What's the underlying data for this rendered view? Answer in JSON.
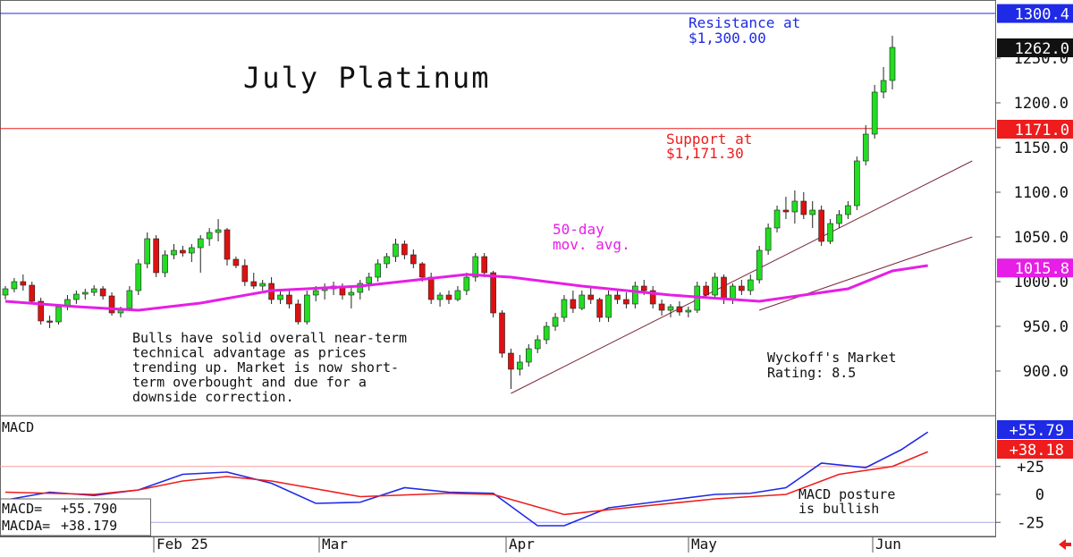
{
  "chart_data": [
    {
      "type": "candlestick",
      "title": "July Platinum",
      "y_axis": {
        "min": 875,
        "max": 1310,
        "ticks": [
          900,
          950,
          1000,
          1050,
          1100,
          1150,
          1200,
          1250
        ]
      },
      "x_axis": {
        "labels": [
          "Feb 25",
          "Mar",
          "Apr",
          "May",
          "Jun"
        ]
      },
      "price_tags": [
        {
          "value": "1300.4",
          "level": 1300.4,
          "color": "#1e2ae6",
          "text_color": "#ffffff"
        },
        {
          "value": "1262.0",
          "level": 1262.0,
          "color": "#111111",
          "text_color": "#ffffff"
        },
        {
          "value": "1171.0",
          "level": 1171.0,
          "color": "#ee1c1c",
          "text_color": "#ffffff"
        },
        {
          "value": "1015.8",
          "level": 1015.8,
          "color": "#e61ee6",
          "text_color": "#ffffff"
        }
      ],
      "resistance": {
        "level": 1300.0,
        "label_line1": "Resistance at",
        "label_line2": "$1,300.00",
        "color": "#1e2ae6"
      },
      "support": {
        "level": 1171.3,
        "label_line1": "Support at",
        "label_line2": "$1,171.30",
        "color": "#ee1c1c"
      },
      "moving_average": {
        "label_line1": "50-day",
        "label_line2": "mov. avg.",
        "color": "#e61ee6"
      },
      "annotations": {
        "comment": [
          "Bulls have solid overall near-term",
          "technical advantage as prices",
          "trending up. Market is now short-",
          "term overbought and due for a",
          "downside correction."
        ],
        "rating": [
          "Wyckoff's Market",
          "Rating: 8.5"
        ]
      },
      "candles": [
        [
          985,
          995,
          980,
          992
        ],
        [
          992,
          1004,
          988,
          1000
        ],
        [
          1000,
          1008,
          990,
          996
        ],
        [
          996,
          1000,
          975,
          978
        ],
        [
          978,
          982,
          952,
          956
        ],
        [
          956,
          962,
          948,
          955
        ],
        [
          955,
          975,
          952,
          972
        ],
        [
          972,
          985,
          968,
          980
        ],
        [
          980,
          990,
          975,
          986
        ],
        [
          986,
          992,
          980,
          988
        ],
        [
          988,
          996,
          984,
          992
        ],
        [
          992,
          995,
          980,
          984
        ],
        [
          984,
          988,
          962,
          965
        ],
        [
          965,
          972,
          960,
          970
        ],
        [
          970,
          995,
          968,
          990
        ],
        [
          990,
          1025,
          985,
          1020
        ],
        [
          1020,
          1055,
          1015,
          1048
        ],
        [
          1048,
          1052,
          1005,
          1010
        ],
        [
          1010,
          1035,
          1005,
          1030
        ],
        [
          1030,
          1042,
          1025,
          1035
        ],
        [
          1035,
          1040,
          1028,
          1032
        ],
        [
          1032,
          1042,
          1022,
          1038
        ],
        [
          1038,
          1052,
          1010,
          1048
        ],
        [
          1048,
          1060,
          1040,
          1055
        ],
        [
          1055,
          1070,
          1045,
          1058
        ],
        [
          1058,
          1060,
          1018,
          1025
        ],
        [
          1025,
          1028,
          1015,
          1018
        ],
        [
          1018,
          1025,
          995,
          1000
        ],
        [
          1000,
          1010,
          992,
          995
        ],
        [
          995,
          1002,
          990,
          998
        ],
        [
          998,
          1005,
          975,
          980
        ],
        [
          980,
          990,
          975,
          985
        ],
        [
          985,
          992,
          970,
          975
        ],
        [
          975,
          980,
          952,
          955
        ],
        [
          955,
          990,
          952,
          985
        ],
        [
          985,
          995,
          978,
          990
        ],
        [
          990,
          998,
          980,
          992
        ],
        [
          992,
          1000,
          985,
          995
        ],
        [
          995,
          998,
          980,
          985
        ],
        [
          985,
          995,
          970,
          988
        ],
        [
          988,
          1002,
          980,
          998
        ],
        [
          998,
          1010,
          990,
          1005
        ],
        [
          1005,
          1025,
          1000,
          1020
        ],
        [
          1020,
          1032,
          1015,
          1028
        ],
        [
          1028,
          1048,
          1022,
          1042
        ],
        [
          1042,
          1046,
          1025,
          1030
        ],
        [
          1030,
          1036,
          1015,
          1020
        ],
        [
          1020,
          1022,
          1000,
          1005
        ],
        [
          1005,
          1010,
          975,
          980
        ],
        [
          980,
          988,
          972,
          985
        ],
        [
          985,
          990,
          975,
          980
        ],
        [
          980,
          995,
          978,
          990
        ],
        [
          990,
          1010,
          985,
          1005
        ],
        [
          1005,
          1032,
          1000,
          1028
        ],
        [
          1028,
          1032,
          1005,
          1010
        ],
        [
          1010,
          1012,
          960,
          965
        ],
        [
          965,
          968,
          915,
          920
        ],
        [
          920,
          925,
          880,
          902
        ],
        [
          902,
          918,
          895,
          910
        ],
        [
          910,
          930,
          905,
          925
        ],
        [
          925,
          940,
          920,
          935
        ],
        [
          935,
          955,
          930,
          950
        ],
        [
          950,
          965,
          945,
          960
        ],
        [
          960,
          985,
          955,
          980
        ],
        [
          980,
          990,
          965,
          970
        ],
        [
          970,
          990,
          968,
          985
        ],
        [
          985,
          995,
          975,
          980
        ],
        [
          980,
          982,
          955,
          960
        ],
        [
          960,
          990,
          955,
          985
        ],
        [
          985,
          992,
          975,
          980
        ],
        [
          980,
          988,
          970,
          975
        ],
        [
          975,
          1000,
          970,
          995
        ],
        [
          995,
          1002,
          985,
          990
        ],
        [
          990,
          995,
          970,
          975
        ],
        [
          975,
          980,
          962,
          968
        ],
        [
          968,
          975,
          960,
          972
        ],
        [
          972,
          978,
          962,
          966
        ],
        [
          966,
          972,
          960,
          968
        ],
        [
          968,
          1000,
          965,
          995
        ],
        [
          995,
          1000,
          982,
          985
        ],
        [
          985,
          1010,
          980,
          1005
        ],
        [
          1005,
          1008,
          975,
          980
        ],
        [
          980,
          998,
          975,
          995
        ],
        [
          995,
          1002,
          985,
          990
        ],
        [
          990,
          1008,
          985,
          1002
        ],
        [
          1002,
          1040,
          998,
          1035
        ],
        [
          1035,
          1065,
          1030,
          1060
        ],
        [
          1060,
          1085,
          1055,
          1080
        ],
        [
          1080,
          1095,
          1070,
          1078
        ],
        [
          1078,
          1102,
          1065,
          1090
        ],
        [
          1090,
          1100,
          1070,
          1075
        ],
        [
          1075,
          1090,
          1060,
          1080
        ],
        [
          1080,
          1085,
          1040,
          1045
        ],
        [
          1045,
          1070,
          1042,
          1065
        ],
        [
          1065,
          1080,
          1060,
          1075
        ],
        [
          1075,
          1090,
          1070,
          1085
        ],
        [
          1085,
          1140,
          1080,
          1135
        ],
        [
          1135,
          1175,
          1130,
          1165
        ],
        [
          1165,
          1220,
          1160,
          1212
        ],
        [
          1212,
          1240,
          1205,
          1225
        ],
        [
          1225,
          1275,
          1215,
          1262
        ]
      ],
      "ma_points": [
        [
          0,
          978
        ],
        [
          8,
          972
        ],
        [
          15,
          968
        ],
        [
          22,
          976
        ],
        [
          30,
          990
        ],
        [
          40,
          995
        ],
        [
          52,
          1008
        ],
        [
          57,
          1005
        ],
        [
          65,
          995
        ],
        [
          75,
          985
        ],
        [
          85,
          978
        ],
        [
          90,
          985
        ],
        [
          95,
          992
        ],
        [
          100,
          1012
        ],
        [
          104,
          1018
        ]
      ],
      "trendlines": [
        [
          57,
          875,
          109,
          1135
        ],
        [
          85,
          968,
          109,
          1050
        ]
      ]
    },
    {
      "type": "line",
      "title": "MACD",
      "y_axis": {
        "ticks": [
          "+25",
          "0",
          "-25"
        ]
      },
      "readout": {
        "macd_label": "MACD=",
        "macd_value": "+55.790",
        "macda_label": "MACDA=",
        "macda_value": "+38.179"
      },
      "tags": [
        {
          "value": "+55.79",
          "color": "#1e2ae6"
        },
        {
          "value": "+38.18",
          "color": "#ee1c1c"
        }
      ],
      "annotation": [
        "MACD posture",
        "is bullish"
      ],
      "series": [
        {
          "color": "#1e2ae6",
          "points": [
            [
              0,
              -5
            ],
            [
              5,
              2
            ],
            [
              10,
              -1
            ],
            [
              15,
              4
            ],
            [
              20,
              18
            ],
            [
              25,
              20
            ],
            [
              30,
              10
            ],
            [
              35,
              -8
            ],
            [
              40,
              -7
            ],
            [
              45,
              6
            ],
            [
              50,
              2
            ],
            [
              55,
              1
            ],
            [
              60,
              -28
            ],
            [
              63,
              -28
            ],
            [
              68,
              -12
            ],
            [
              75,
              -5
            ],
            [
              80,
              0
            ],
            [
              84,
              1
            ],
            [
              88,
              6
            ],
            [
              92,
              28
            ],
            [
              97,
              24
            ],
            [
              101,
              40
            ],
            [
              104,
              55.8
            ]
          ]
        },
        {
          "color": "#ee1c1c",
          "points": [
            [
              0,
              2
            ],
            [
              10,
              0
            ],
            [
              15,
              4
            ],
            [
              20,
              12
            ],
            [
              25,
              16
            ],
            [
              30,
              12
            ],
            [
              40,
              -2
            ],
            [
              50,
              1
            ],
            [
              55,
              0
            ],
            [
              63,
              -18
            ],
            [
              70,
              -12
            ],
            [
              80,
              -4
            ],
            [
              88,
              0
            ],
            [
              94,
              18
            ],
            [
              100,
              25
            ],
            [
              104,
              38.2
            ]
          ]
        }
      ]
    }
  ]
}
